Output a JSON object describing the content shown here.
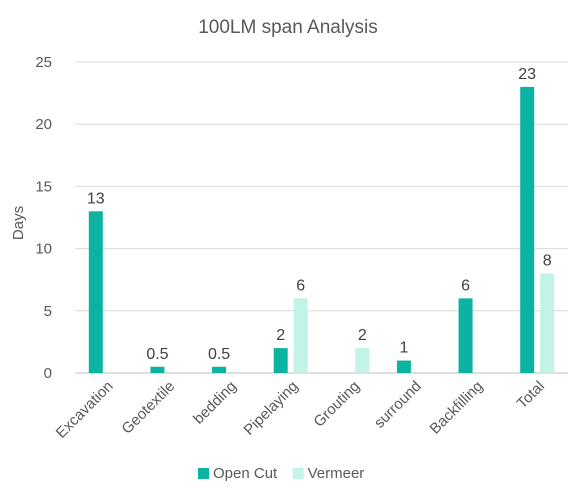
{
  "chart_data": {
    "type": "bar",
    "title": "100LM span Analysis",
    "xlabel": "",
    "ylabel": "Days",
    "ylim": [
      0,
      25
    ],
    "yticks": [
      0,
      5,
      10,
      15,
      20,
      25
    ],
    "grid": true,
    "legend_position": "bottom",
    "categories": [
      "Excavation",
      "Geotextile",
      "bedding",
      "Pipelaying",
      "Grouting",
      "surround",
      "Backfilling",
      "Total"
    ],
    "series": [
      {
        "name": "Open Cut",
        "color": "#0CB3A0",
        "values": [
          13,
          0.5,
          0.5,
          2,
          null,
          1,
          6,
          23
        ],
        "labels": [
          "13",
          "0.5",
          "0.5",
          "2",
          "",
          "1",
          "6",
          "23"
        ]
      },
      {
        "name": "Vermeer",
        "color": "#C3F2E6",
        "values": [
          null,
          null,
          null,
          6,
          2,
          null,
          null,
          8
        ],
        "labels": [
          "",
          "",
          "",
          "6",
          "2",
          "",
          "",
          "8"
        ]
      }
    ]
  }
}
